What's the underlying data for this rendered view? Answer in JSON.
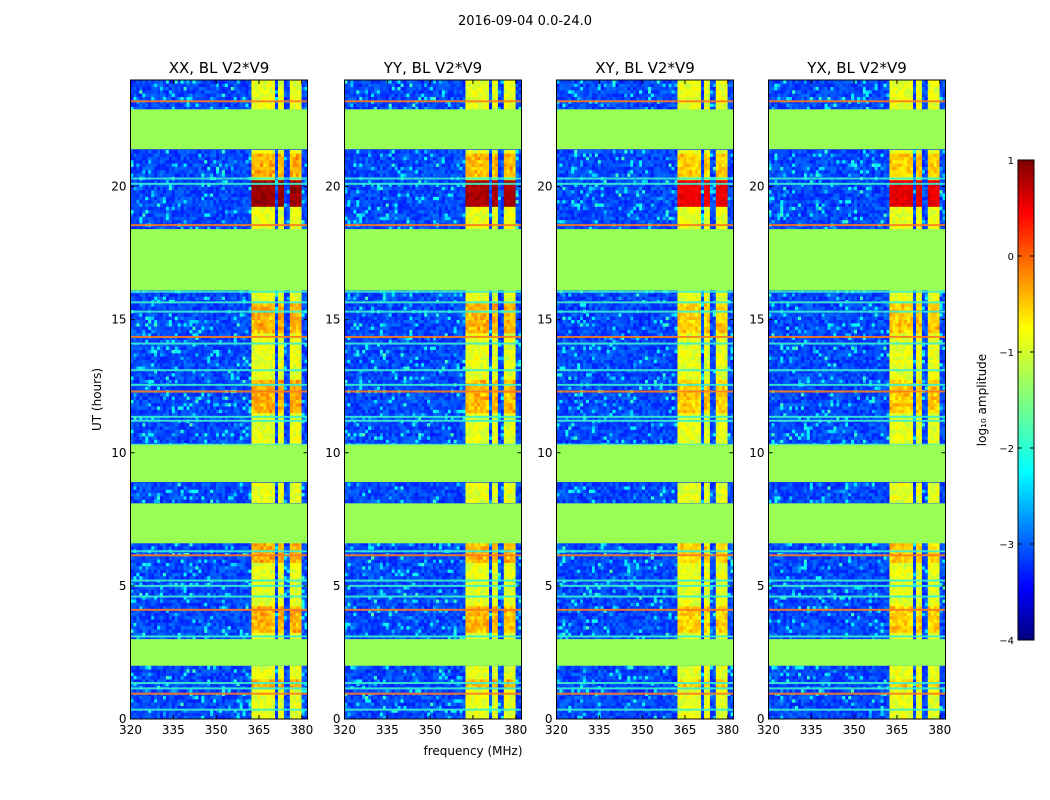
{
  "figure": {
    "suptitle": "2016-09-04 0.0-24.0"
  },
  "chart_data": {
    "type": "heatmap",
    "panels": [
      {
        "title": "XX, BL V2*V9",
        "pol": "XX",
        "strength": 1.0
      },
      {
        "title": "YY, BL V2*V9",
        "pol": "YY",
        "strength": 0.9
      },
      {
        "title": "XY, BL V2*V9",
        "pol": "XY",
        "strength": 0.55
      },
      {
        "title": "YX, BL V2*V9",
        "pol": "YX",
        "strength": 0.6
      }
    ],
    "x": {
      "label": "frequency (MHz)",
      "range": [
        320,
        382
      ],
      "ticks": [
        320,
        335,
        350,
        365,
        380
      ]
    },
    "y": {
      "label": "UT (hours)",
      "range": [
        0,
        24
      ],
      "ticks": [
        0,
        5,
        10,
        15,
        20
      ]
    },
    "colorbar": {
      "label": "log₁₀ amplitude",
      "range": [
        -4,
        1
      ],
      "ticks": [
        -4,
        -3,
        -2,
        -1,
        0,
        1
      ],
      "colormap": "jet"
    },
    "flagged_time_ranges_hours": [
      [
        2.0,
        3.0
      ],
      [
        6.6,
        8.1
      ],
      [
        8.9,
        10.3
      ],
      [
        16.1,
        18.4
      ],
      [
        21.4,
        22.9
      ]
    ],
    "bright_rfi_channels_mhz": [
      [
        362.7,
        367.2
      ],
      [
        367.9,
        370.5
      ],
      [
        371.8,
        374.2
      ],
      [
        376.0,
        380.1
      ]
    ],
    "strong_rfi_hours": [
      [
        19.2,
        20.2
      ]
    ],
    "moderate_rfi_hours": [
      [
        20.4,
        21.3
      ],
      [
        14.5,
        15.6
      ],
      [
        11.5,
        12.8
      ],
      [
        5.9,
        6.6
      ],
      [
        1.1,
        1.5
      ],
      [
        3.2,
        4.3
      ]
    ],
    "horizontal_rfi_lines_hours": [
      0.35,
      0.95,
      1.15,
      1.35,
      3.1,
      4.1,
      4.6,
      5.0,
      5.2,
      6.15,
      6.3,
      7.9,
      8.05,
      10.15,
      10.3,
      11.2,
      11.35,
      12.3,
      12.55,
      13.1,
      14.1,
      14.35,
      15.3,
      15.65,
      16.05,
      18.55,
      20.1,
      20.3,
      21.55,
      23.2
    ]
  }
}
